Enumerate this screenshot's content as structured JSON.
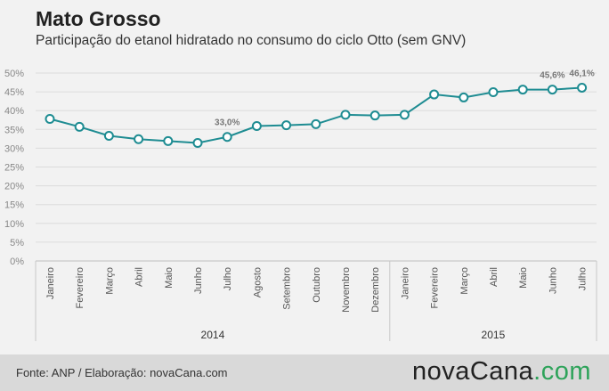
{
  "header": {
    "title": "Mato Grosso",
    "subtitle": "Participação do etanol hidratado no consumo do ciclo Otto (sem GNV)"
  },
  "footer": {
    "source": "Fonte: ANP / Elaboração: novaCana.com",
    "logo_main": "novaCana",
    "logo_suffix": ".com"
  },
  "colors": {
    "line": "#1e8c92",
    "marker_fill": "#ffffff",
    "grid": "#dcdcdc",
    "axis_text": "#888888",
    "background": "#f2f2f2",
    "logo_accent": "#2ea35a"
  },
  "chart_data": {
    "type": "line",
    "ylim": [
      0,
      50
    ],
    "yticks": [
      0,
      5,
      10,
      15,
      20,
      25,
      30,
      35,
      40,
      45,
      50
    ],
    "ytick_labels": [
      "0%",
      "5%",
      "10%",
      "15%",
      "20%",
      "25%",
      "30%",
      "35%",
      "40%",
      "45%",
      "50%"
    ],
    "grid": true,
    "categories": [
      "Janeiro",
      "Fevereiro",
      "Março",
      "Abril",
      "Maio",
      "Junho",
      "Julho",
      "Agosto",
      "Setembro",
      "Outubro",
      "Novembro",
      "Dezembro",
      "Janeiro",
      "Fevereiro",
      "Março",
      "Abril",
      "Maio",
      "Junho",
      "Julho"
    ],
    "groups": [
      {
        "label": "2014",
        "count": 12
      },
      {
        "label": "2015",
        "count": 7
      }
    ],
    "series": [
      {
        "values": [
          37.8,
          35.7,
          33.3,
          32.4,
          31.9,
          31.4,
          33.0,
          35.9,
          36.1,
          36.4,
          38.9,
          38.7,
          38.9,
          44.3,
          43.5,
          44.9,
          45.6,
          45.6,
          46.1
        ]
      }
    ],
    "data_labels": [
      {
        "index": 6,
        "text": "33,0%"
      },
      {
        "index": 17,
        "text": "45,6%"
      },
      {
        "index": 18,
        "text": "46,1%"
      }
    ]
  }
}
